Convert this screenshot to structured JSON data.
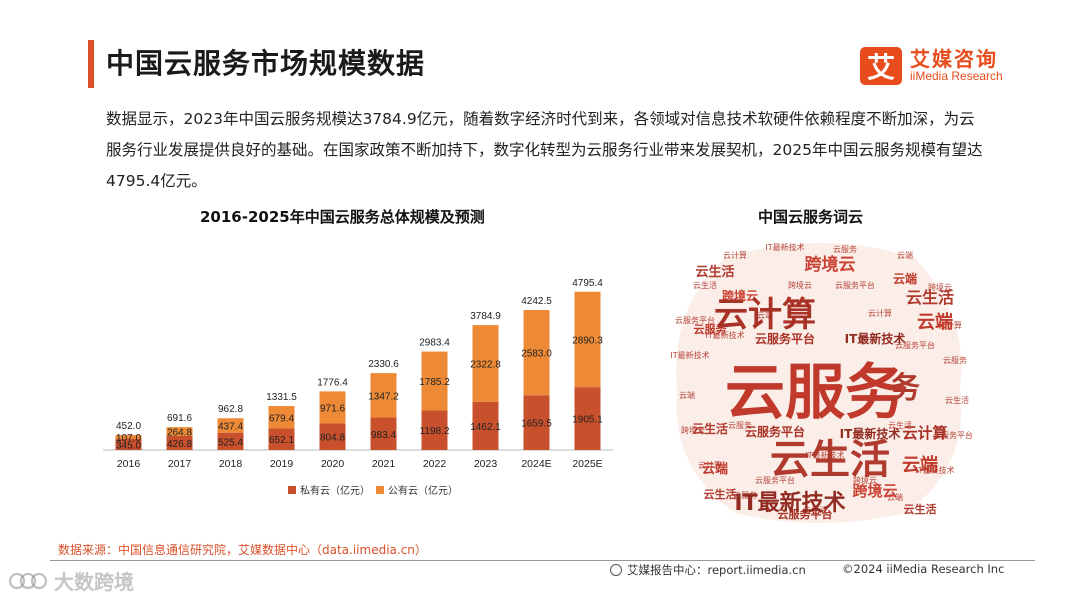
{
  "header": {
    "title": "中国云服务市场规模数据",
    "logo_mark": "艾",
    "logo_cn": "艾媒咨询",
    "logo_en": "iiMedia Research"
  },
  "description": "数据显示，2023年中国云服务规模达3784.9亿元，随着数字经济时代到来，各领域对信息技术软硬件依赖程度不断加深，为云服务行业发展提供良好的基础。在国家政策不断加持下，数字化转型为云服务行业带来发展契机，2025年中国云服务规模有望达4795.4亿元。",
  "wordcloud": {
    "title": "中国云服务词云",
    "words": [
      "云服务",
      "云计算",
      "云生活",
      "IT最新技术",
      "跨境云",
      "云端",
      "云服务平台"
    ]
  },
  "source": "数据来源：中国信息通信研究院，艾媒数据中心（data.iimedia.cn）",
  "footer": {
    "center": "艾媒报告中心：report.iimedia.cn",
    "right": "©2024  iiMedia Research  Inc"
  },
  "watermark": "大数跨境",
  "colors": {
    "private": "#c8502c",
    "public": "#ee8a35",
    "accent": "#e84c1c"
  },
  "chart_data": {
    "type": "bar",
    "stacked": true,
    "title": "2016-2025年中国云服务总体规模及预测",
    "categories": [
      "2016",
      "2017",
      "2018",
      "2019",
      "2020",
      "2021",
      "2022",
      "2023",
      "2024E",
      "2025E"
    ],
    "series": [
      {
        "name": "私有云（亿元）",
        "values": [
          345.0,
          426.8,
          525.4,
          652.1,
          804.8,
          983.4,
          1198.2,
          1462.1,
          1659.5,
          1905.1
        ]
      },
      {
        "name": "公有云（亿元）",
        "values": [
          107.0,
          264.8,
          437.4,
          679.4,
          971.6,
          1347.2,
          1785.2,
          2322.8,
          2583.0,
          2890.3
        ]
      }
    ],
    "totals": [
      452.0,
      691.6,
      962.8,
      1331.5,
      1776.4,
      2330.6,
      2983.4,
      3784.9,
      4242.5,
      4795.4
    ],
    "ylim": [
      0,
      5000
    ],
    "legend": "bottom"
  }
}
